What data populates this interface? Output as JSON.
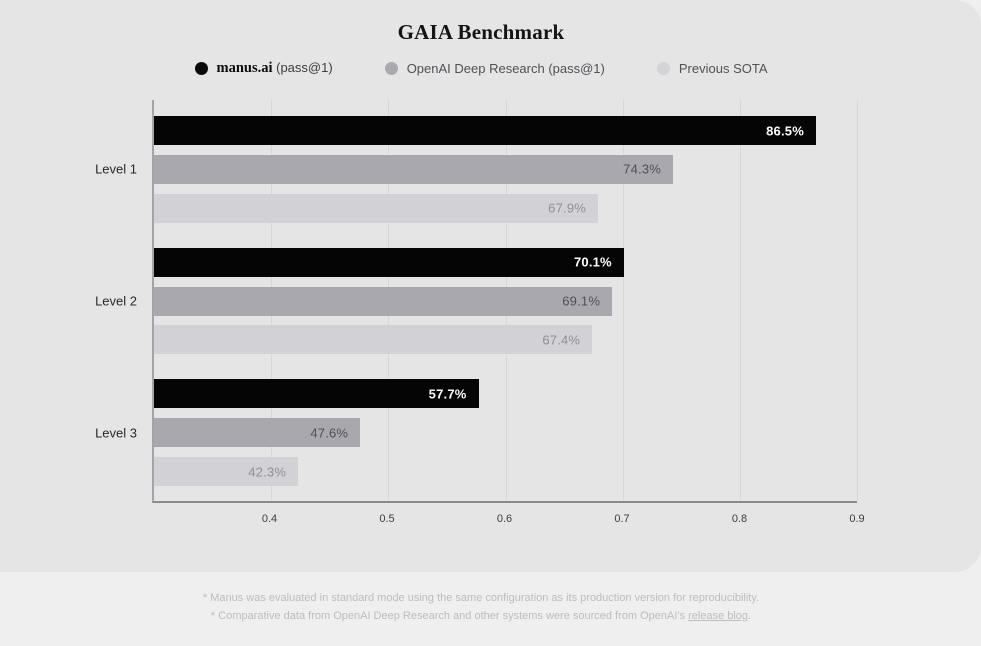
{
  "title": "GAIA Benchmark",
  "legend": [
    {
      "dot_color": "#0a0a0a",
      "name": "manus.ai",
      "name_serif": true,
      "suffix": " (pass@1)",
      "id": "manus-ai"
    },
    {
      "dot_color": "#a9a9af",
      "name": "OpenAI Deep Research (pass@1)",
      "name_serif": false,
      "suffix": "",
      "id": "openai-deep-research"
    },
    {
      "dot_color": "#d3d3d8",
      "name": "Previous SOTA",
      "name_serif": false,
      "suffix": "",
      "id": "previous-sota"
    }
  ],
  "chart_data": {
    "type": "bar",
    "orientation": "horizontal",
    "title": "GAIA Benchmark",
    "categories": [
      "Level 1",
      "Level 2",
      "Level 3"
    ],
    "series": [
      {
        "name": "manus.ai (pass@1)",
        "color": "#050505",
        "label_color": "#ffffff",
        "label_weight": "700",
        "values": [
          86.5,
          70.1,
          57.7
        ]
      },
      {
        "name": "OpenAI Deep Research (pass@1)",
        "color": "#a8a8ae",
        "label_color": "#4f4f54",
        "label_weight": "400",
        "values": [
          74.3,
          69.1,
          47.6
        ]
      },
      {
        "name": "Previous SOTA",
        "color": "#d1d1d6",
        "label_color": "#8f8f95",
        "label_weight": "400",
        "values": [
          67.9,
          67.4,
          42.3
        ]
      }
    ],
    "value_suffix": "%",
    "xlim": [
      30,
      90
    ],
    "x_ticks": [
      "0.4",
      "0.5",
      "0.6",
      "0.7",
      "0.8",
      "0.9"
    ],
    "x_tick_values": [
      40,
      50,
      60,
      70,
      80,
      90
    ],
    "grid": "vertical",
    "legend_position": "top"
  },
  "footnotes": {
    "line1": "* Manus was evaluated in standard mode using the same configuration as its production version for reproducibility.",
    "line2_prefix": "* Comparative data from OpenAI Deep Research and other systems were sourced from OpenAI's ",
    "line2_link": "release blog",
    "line2_suffix": "."
  }
}
